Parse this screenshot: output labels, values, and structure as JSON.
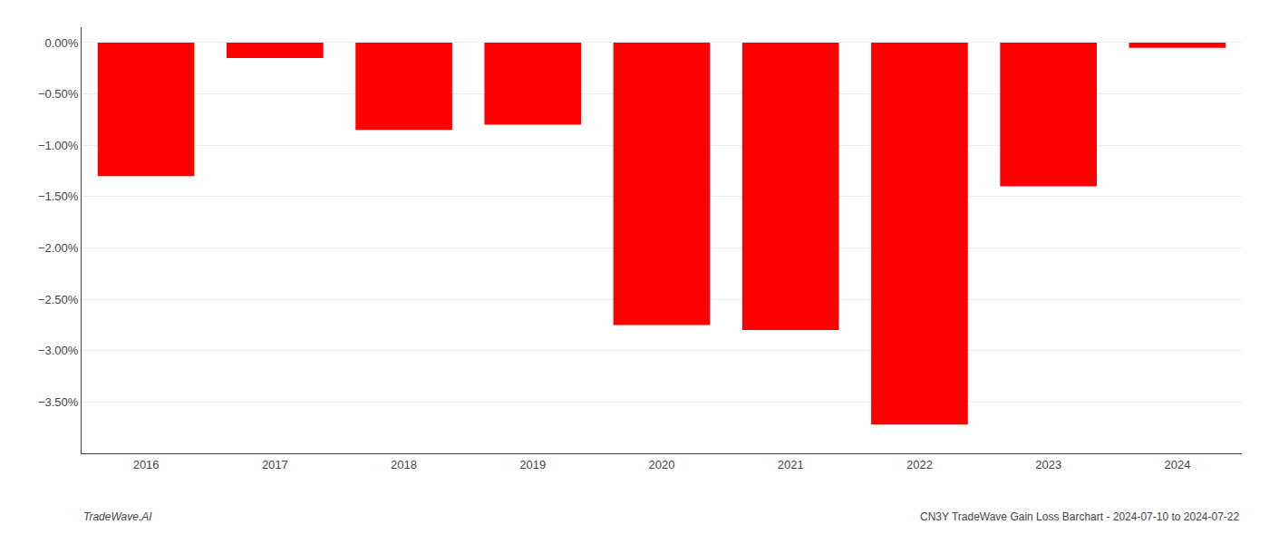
{
  "chart_data": {
    "type": "bar",
    "categories": [
      "2016",
      "2017",
      "2018",
      "2019",
      "2020",
      "2021",
      "2022",
      "2023",
      "2024"
    ],
    "values": [
      -1.3,
      -0.15,
      -0.85,
      -0.8,
      -2.75,
      -2.8,
      -3.72,
      -1.4,
      -0.05
    ],
    "color": "#ff0000",
    "ylim": [
      -4.0,
      0.15
    ],
    "yticks": [
      {
        "value": 0.0,
        "label": "0.00%"
      },
      {
        "value": -0.5,
        "label": "−0.50%"
      },
      {
        "value": -1.0,
        "label": "−1.00%"
      },
      {
        "value": -1.5,
        "label": "−1.50%"
      },
      {
        "value": -2.0,
        "label": "−2.00%"
      },
      {
        "value": -2.5,
        "label": "−2.50%"
      },
      {
        "value": -3.0,
        "label": "−3.00%"
      },
      {
        "value": -3.5,
        "label": "−3.50%"
      }
    ],
    "grid": true,
    "annotations": [
      "TradeWave.AI",
      "CN3Y TradeWave Gain Loss Barchart - 2024-07-10 to 2024-07-22"
    ]
  }
}
